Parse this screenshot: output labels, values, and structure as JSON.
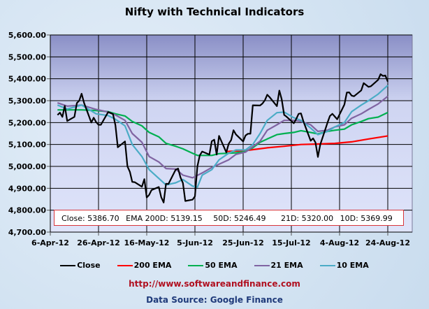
{
  "chart_data": {
    "type": "line",
    "title": "Nifty with Technical Indicators",
    "x_ticks": [
      "6-Apr-12",
      "26-Apr-12",
      "16-May-12",
      "5-Jun-12",
      "25-Jun-12",
      "15-Jul-12",
      "4-Aug-12",
      "24-Aug-12"
    ],
    "x_start_date": "2012-04-06",
    "y_ticks": [
      "4,700.00",
      "4,800.00",
      "4,900.00",
      "5,000.00",
      "5,100.00",
      "5,200.00",
      "5,300.00",
      "5,400.00",
      "5,500.00",
      "5,600.00"
    ],
    "ylim": [
      4700,
      5600
    ],
    "grid": true,
    "legend_position": "bottom",
    "series": [
      {
        "name": "Close",
        "color": "#000000",
        "points": [
          [
            "4-9",
            5235
          ],
          [
            "4-10",
            5245
          ],
          [
            "4-11",
            5226
          ],
          [
            "4-12",
            5276
          ],
          [
            "4-13",
            5207
          ],
          [
            "4-16",
            5226
          ],
          [
            "4-17",
            5289
          ],
          [
            "4-18",
            5300
          ],
          [
            "4-19",
            5332
          ],
          [
            "4-20",
            5290
          ],
          [
            "4-23",
            5200
          ],
          [
            "4-24",
            5222
          ],
          [
            "4-25",
            5202
          ],
          [
            "4-26",
            5190
          ],
          [
            "4-27",
            5190
          ],
          [
            "4-30",
            5248
          ],
          [
            "5-2",
            5239
          ],
          [
            "5-3",
            5188
          ],
          [
            "5-4",
            5087
          ],
          [
            "5-7",
            5114
          ],
          [
            "5-8",
            5000
          ],
          [
            "5-9",
            4975
          ],
          [
            "5-10",
            4929
          ],
          [
            "5-11",
            4928
          ],
          [
            "5-14",
            4907
          ],
          [
            "5-15",
            4942
          ],
          [
            "5-16",
            4858
          ],
          [
            "5-17",
            4870
          ],
          [
            "5-18",
            4892
          ],
          [
            "5-21",
            4906
          ],
          [
            "5-22",
            4860
          ],
          [
            "5-23",
            4835
          ],
          [
            "5-24",
            4921
          ],
          [
            "5-25",
            4920
          ],
          [
            "5-28",
            4985
          ],
          [
            "5-29",
            4990
          ],
          [
            "5-30",
            4950
          ],
          [
            "5-31",
            4924
          ],
          [
            "6-1",
            4842
          ],
          [
            "6-4",
            4848
          ],
          [
            "6-5",
            4863
          ],
          [
            "6-6",
            5000
          ],
          [
            "6-7",
            5050
          ],
          [
            "6-8",
            5068
          ],
          [
            "6-11",
            5054
          ],
          [
            "6-12",
            5115
          ],
          [
            "6-13",
            5122
          ],
          [
            "6-14",
            5054
          ],
          [
            "6-15",
            5139
          ],
          [
            "6-18",
            5064
          ],
          [
            "6-19",
            5103
          ],
          [
            "6-20",
            5120
          ],
          [
            "6-21",
            5165
          ],
          [
            "6-22",
            5146
          ],
          [
            "6-25",
            5114
          ],
          [
            "6-26",
            5141
          ],
          [
            "6-27",
            5149
          ],
          [
            "6-28",
            5149
          ],
          [
            "6-29",
            5279
          ],
          [
            "7-2",
            5278
          ],
          [
            "7-3",
            5287
          ],
          [
            "7-4",
            5302
          ],
          [
            "7-5",
            5327
          ],
          [
            "7-6",
            5316
          ],
          [
            "7-9",
            5275
          ],
          [
            "7-10",
            5346
          ],
          [
            "7-11",
            5306
          ],
          [
            "7-12",
            5235
          ],
          [
            "7-13",
            5227
          ],
          [
            "7-16",
            5197
          ],
          [
            "7-17",
            5216
          ],
          [
            "7-18",
            5240
          ],
          [
            "7-19",
            5242
          ],
          [
            "7-20",
            5205
          ],
          [
            "7-23",
            5117
          ],
          [
            "7-24",
            5128
          ],
          [
            "7-25",
            5109
          ],
          [
            "7-26",
            5043
          ],
          [
            "7-27",
            5100
          ],
          [
            "7-30",
            5200
          ],
          [
            "7-31",
            5230
          ],
          [
            "8-1",
            5240
          ],
          [
            "8-2",
            5228
          ],
          [
            "8-3",
            5215
          ],
          [
            "8-6",
            5282
          ],
          [
            "8-7",
            5337
          ],
          [
            "8-8",
            5338
          ],
          [
            "8-9",
            5323
          ],
          [
            "8-10",
            5320
          ],
          [
            "8-13",
            5347
          ],
          [
            "8-14",
            5380
          ],
          [
            "8-16",
            5363
          ],
          [
            "8-17",
            5366
          ],
          [
            "8-20",
            5395
          ],
          [
            "8-21",
            5421
          ],
          [
            "8-22",
            5413
          ],
          [
            "8-23",
            5415
          ],
          [
            "8-24",
            5387
          ]
        ]
      },
      {
        "name": "200 EMA",
        "color": "#ff0000",
        "points": [
          [
            "6-18",
            5068
          ],
          [
            "6-26",
            5072
          ],
          [
            "7-5",
            5085
          ],
          [
            "7-12",
            5092
          ],
          [
            "7-19",
            5100
          ],
          [
            "7-26",
            5102
          ],
          [
            "8-2",
            5105
          ],
          [
            "8-9",
            5112
          ],
          [
            "8-16",
            5125
          ],
          [
            "8-24",
            5139
          ]
        ]
      },
      {
        "name": "50 EMA",
        "color": "#00b050",
        "points": [
          [
            "4-9",
            5258
          ],
          [
            "4-19",
            5258
          ],
          [
            "4-25",
            5255
          ],
          [
            "4-30",
            5250
          ],
          [
            "5-3",
            5240
          ],
          [
            "5-7",
            5230
          ],
          [
            "5-10",
            5205
          ],
          [
            "5-14",
            5185
          ],
          [
            "5-17",
            5155
          ],
          [
            "5-21",
            5135
          ],
          [
            "5-24",
            5105
          ],
          [
            "5-28",
            5092
          ],
          [
            "5-31",
            5080
          ],
          [
            "6-4",
            5060
          ],
          [
            "6-6",
            5050
          ],
          [
            "6-12",
            5050
          ],
          [
            "6-15",
            5058
          ],
          [
            "6-22",
            5062
          ],
          [
            "6-26",
            5068
          ],
          [
            "6-29",
            5085
          ],
          [
            "7-2",
            5110
          ],
          [
            "7-5",
            5125
          ],
          [
            "7-9",
            5145
          ],
          [
            "7-12",
            5150
          ],
          [
            "7-16",
            5155
          ],
          [
            "7-19",
            5163
          ],
          [
            "7-23",
            5155
          ],
          [
            "7-26",
            5148
          ],
          [
            "7-30",
            5160
          ],
          [
            "8-2",
            5165
          ],
          [
            "8-6",
            5170
          ],
          [
            "8-9",
            5190
          ],
          [
            "8-13",
            5205
          ],
          [
            "8-16",
            5218
          ],
          [
            "8-20",
            5225
          ],
          [
            "8-24",
            5246
          ]
        ]
      },
      {
        "name": "21 EMA",
        "color": "#8064a2",
        "points": [
          [
            "4-9",
            5290
          ],
          [
            "4-13",
            5275
          ],
          [
            "4-19",
            5280
          ],
          [
            "4-25",
            5260
          ],
          [
            "4-30",
            5248
          ],
          [
            "5-3",
            5235
          ],
          [
            "5-7",
            5210
          ],
          [
            "5-10",
            5150
          ],
          [
            "5-14",
            5110
          ],
          [
            "5-17",
            5045
          ],
          [
            "5-21",
            5020
          ],
          [
            "5-24",
            4990
          ],
          [
            "5-28",
            4988
          ],
          [
            "5-31",
            4960
          ],
          [
            "6-4",
            4948
          ],
          [
            "6-8",
            4970
          ],
          [
            "6-12",
            4995
          ],
          [
            "6-15",
            5010
          ],
          [
            "6-19",
            5030
          ],
          [
            "6-22",
            5055
          ],
          [
            "6-26",
            5065
          ],
          [
            "6-29",
            5090
          ],
          [
            "7-2",
            5115
          ],
          [
            "7-5",
            5165
          ],
          [
            "7-9",
            5190
          ],
          [
            "7-12",
            5210
          ],
          [
            "7-16",
            5210
          ],
          [
            "7-19",
            5205
          ],
          [
            "7-23",
            5190
          ],
          [
            "7-26",
            5160
          ],
          [
            "7-30",
            5165
          ],
          [
            "8-2",
            5180
          ],
          [
            "8-6",
            5190
          ],
          [
            "8-9",
            5220
          ],
          [
            "8-13",
            5240
          ],
          [
            "8-16",
            5260
          ],
          [
            "8-20",
            5285
          ],
          [
            "8-24",
            5320
          ]
        ]
      },
      {
        "name": "10 EMA",
        "color": "#4bacc6",
        "points": [
          [
            "4-9",
            5280
          ],
          [
            "4-13",
            5262
          ],
          [
            "4-19",
            5280
          ],
          [
            "4-25",
            5240
          ],
          [
            "4-30",
            5232
          ],
          [
            "5-3",
            5215
          ],
          [
            "5-7",
            5185
          ],
          [
            "5-10",
            5100
          ],
          [
            "5-14",
            5045
          ],
          [
            "5-17",
            4985
          ],
          [
            "5-21",
            4945
          ],
          [
            "5-24",
            4915
          ],
          [
            "5-28",
            4925
          ],
          [
            "5-31",
            4940
          ],
          [
            "6-4",
            4910
          ],
          [
            "6-6",
            4905
          ],
          [
            "6-8",
            4960
          ],
          [
            "6-12",
            4985
          ],
          [
            "6-15",
            5030
          ],
          [
            "6-19",
            5060
          ],
          [
            "6-22",
            5075
          ],
          [
            "6-26",
            5075
          ],
          [
            "6-29",
            5100
          ],
          [
            "7-2",
            5150
          ],
          [
            "7-5",
            5210
          ],
          [
            "7-9",
            5245
          ],
          [
            "7-12",
            5248
          ],
          [
            "7-16",
            5222
          ],
          [
            "7-19",
            5210
          ],
          [
            "7-23",
            5175
          ],
          [
            "7-26",
            5145
          ],
          [
            "7-30",
            5160
          ],
          [
            "8-2",
            5180
          ],
          [
            "8-6",
            5200
          ],
          [
            "8-9",
            5250
          ],
          [
            "8-13",
            5280
          ],
          [
            "8-16",
            5300
          ],
          [
            "8-20",
            5330
          ],
          [
            "8-24",
            5370
          ]
        ]
      }
    ],
    "annotation": {
      "close": "Close: 5386.70",
      "ema200": "EMA  200D: 5139.15",
      "ema50": "50D: 5246.49",
      "ema21": "21D: 5320.00",
      "ema10": "10D: 5369.99"
    }
  },
  "footer": {
    "url": "http://www.softwareandfinance.com",
    "source": "Data Source: Google Finance"
  }
}
